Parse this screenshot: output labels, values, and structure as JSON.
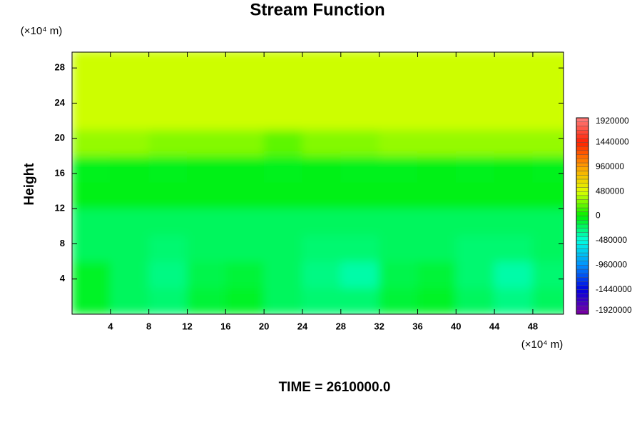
{
  "chart_data": {
    "type": "contour",
    "title": "Stream Function",
    "ylabel": "Height",
    "xunit": "(×10⁴ m)",
    "yunit": "(×10⁴ m)",
    "footer": "TIME = 2610000.0",
    "xlim": [
      0,
      51.2
    ],
    "ylim": [
      0,
      29.8
    ],
    "xticks": [
      4,
      8,
      12,
      16,
      20,
      24,
      28,
      32,
      36,
      40,
      44,
      48
    ],
    "yticks": [
      4,
      8,
      12,
      16,
      20,
      24,
      28
    ],
    "x": [
      2,
      6,
      10,
      14,
      18,
      22,
      26,
      30,
      34,
      38,
      42,
      46,
      50
    ],
    "y": [
      1.5,
      4.5,
      7.5,
      10.5,
      13.5,
      16.5,
      19.5,
      22.5,
      25.5,
      28.5
    ],
    "z": [
      [
        -80000,
        -200000,
        -240000,
        -120000,
        -80000,
        -200000,
        -240000,
        -240000,
        -120000,
        -80000,
        -200000,
        -280000,
        -200000
      ],
      [
        -80000,
        -200000,
        -280000,
        -160000,
        -120000,
        -200000,
        -280000,
        -360000,
        -160000,
        -120000,
        -240000,
        -360000,
        -240000
      ],
      [
        -200000,
        -200000,
        -240000,
        -200000,
        -200000,
        -200000,
        -240000,
        -240000,
        -200000,
        -200000,
        -240000,
        -240000,
        -200000
      ],
      [
        -200000,
        -200000,
        -200000,
        -200000,
        -200000,
        -200000,
        -200000,
        -200000,
        -200000,
        -200000,
        -200000,
        -200000,
        -200000
      ],
      [
        -40000,
        -40000,
        -40000,
        -40000,
        -40000,
        -40000,
        -40000,
        -40000,
        -40000,
        -40000,
        -40000,
        -40000,
        -40000
      ],
      [
        -60000,
        -40000,
        -60000,
        -40000,
        -40000,
        -60000,
        -40000,
        -60000,
        -60000,
        -40000,
        -60000,
        -40000,
        -60000
      ],
      [
        320000,
        320000,
        280000,
        280000,
        280000,
        200000,
        280000,
        280000,
        320000,
        320000,
        320000,
        320000,
        320000
      ],
      [
        440000,
        440000,
        440000,
        440000,
        440000,
        440000,
        440000,
        440000,
        440000,
        440000,
        440000,
        440000,
        440000
      ],
      [
        440000,
        440000,
        440000,
        440000,
        440000,
        440000,
        440000,
        440000,
        440000,
        440000,
        440000,
        440000,
        440000
      ],
      [
        440000,
        440000,
        440000,
        440000,
        440000,
        440000,
        440000,
        440000,
        440000,
        440000,
        440000,
        440000,
        440000
      ]
    ],
    "colorbar_ticks": [
      -1920000,
      -1440000,
      -960000,
      -480000,
      0,
      480000,
      960000,
      1440000,
      1920000
    ],
    "colorbar_colors": [
      "#8000a0",
      "#0000e0",
      "#0090ff",
      "#00ffe0",
      "#00f000",
      "#e0ff00",
      "#ffa000",
      "#ff2000",
      "#ff8080"
    ]
  }
}
